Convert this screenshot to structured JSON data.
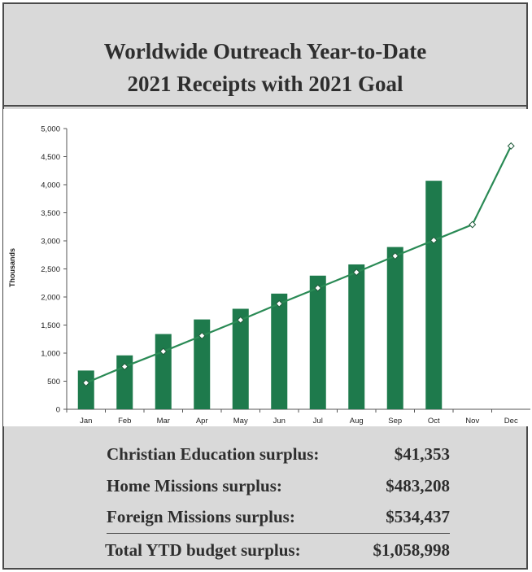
{
  "title_line1": "Worldwide Outreach Year-to-Date",
  "title_line2": "2021 Receipts with 2021 Goal",
  "colors": {
    "bar": "#1e7a4c",
    "line": "#2a8a55",
    "marker_fill": "#ffffff",
    "background": "#d9d9d9"
  },
  "chart_data": {
    "type": "bar",
    "ylabel": "Thousands",
    "xlabel": "",
    "ylim": [
      0,
      5000
    ],
    "yticks": [
      "0",
      "500",
      "1,000",
      "1,500",
      "2,000",
      "2,500",
      "3,000",
      "3,500",
      "4,000",
      "4,500",
      "5,000"
    ],
    "grid": false,
    "categories": [
      "Jan",
      "Feb",
      "Mar",
      "Apr",
      "May",
      "Jun",
      "Jul",
      "Aug",
      "Sep",
      "Oct",
      "Nov",
      "Dec"
    ],
    "series": [
      {
        "type": "bar",
        "values": [
          690,
          960,
          1340,
          1600,
          1790,
          2060,
          2380,
          2580,
          2890,
          4070,
          null,
          null
        ]
      },
      {
        "type": "line",
        "marker": "diamond",
        "values": [
          470,
          760,
          1030,
          1310,
          1590,
          1880,
          2160,
          2440,
          2730,
          3010,
          3290,
          4690
        ]
      }
    ]
  },
  "summary": [
    {
      "label": "Christian Education surplus:",
      "value": "$41,353"
    },
    {
      "label": "Home Missions surplus:",
      "value": "$483,208"
    },
    {
      "label": "Foreign Missions surplus:",
      "value": "$534,437"
    }
  ],
  "total": {
    "label": "Total YTD budget surplus:",
    "value": "$1,058,998"
  }
}
